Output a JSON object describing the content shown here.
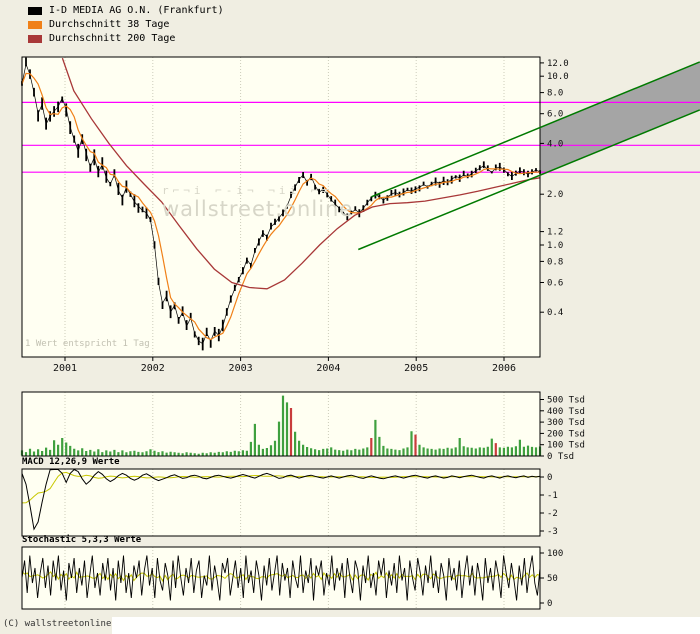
{
  "page": {
    "copyright": "(C) wallstreetonline",
    "note": "1 Wert entspricht 1 Tag",
    "watermark": {
      "glyphs": "r⌐¬i ⌐‐i¬ ¬ii ⌐=",
      "label": "wallstreet:online"
    }
  },
  "legend": [
    {
      "label": "I-D MEDIA AG O.N. (Frankfurt)",
      "color": "#000000"
    },
    {
      "label": "Durchschnitt 38 Tage",
      "color": "#f08018"
    },
    {
      "label": "Durchschnitt 200 Tage",
      "color": "#a83838"
    }
  ],
  "chart_data": [
    {
      "type": "candlestick",
      "name": "price",
      "title": "I-D MEDIA AG O.N. (Frankfurt)",
      "x_range": [
        2000.51,
        2006.41
      ],
      "x_years": [
        2001,
        2002,
        2003,
        2004,
        2005,
        2006
      ],
      "y_scale": "log",
      "y_range": [
        0.217,
        13.0
      ],
      "y_ticks": [
        12.0,
        10.0,
        8.0,
        6.0,
        4.0,
        2.0,
        1.2,
        1.0,
        0.8,
        0.6,
        0.4
      ],
      "price_color": "#000000",
      "close": [
        9.0,
        11.8,
        10.2,
        8.0,
        6.0,
        6.8,
        5.2,
        5.8,
        6.2,
        6.6,
        7.4,
        6.4,
        5.0,
        4.2,
        3.6,
        4.3,
        3.5,
        2.9,
        3.3,
        2.7,
        3.0,
        2.5,
        2.3,
        2.6,
        2.1,
        1.9,
        2.2,
        2.0,
        1.8,
        1.7,
        1.6,
        1.55,
        1.4,
        1.0,
        0.6,
        0.45,
        0.5,
        0.4,
        0.44,
        0.36,
        0.4,
        0.33,
        0.37,
        0.3,
        0.27,
        0.26,
        0.3,
        0.27,
        0.31,
        0.29,
        0.33,
        0.4,
        0.48,
        0.55,
        0.63,
        0.7,
        0.82,
        0.76,
        0.92,
        1.05,
        1.18,
        1.12,
        1.28,
        1.35,
        1.45,
        1.55,
        1.7,
        1.95,
        2.2,
        2.45,
        2.6,
        2.35,
        2.55,
        2.25,
        2.05,
        2.15,
        2.0,
        1.85,
        1.75,
        1.65,
        1.55,
        1.48,
        1.55,
        1.62,
        1.55,
        1.65,
        1.78,
        1.9,
        2.0,
        1.92,
        1.85,
        1.92,
        2.0,
        2.05,
        1.98,
        2.05,
        2.12,
        2.08,
        2.15,
        2.2,
        2.28,
        2.22,
        2.3,
        2.38,
        2.32,
        2.4,
        2.35,
        2.45,
        2.55,
        2.5,
        2.6,
        2.55,
        2.65,
        2.75,
        2.85,
        2.95,
        2.8,
        2.7,
        2.85,
        2.9,
        2.8,
        2.65,
        2.55,
        2.65,
        2.75,
        2.7,
        2.62,
        2.7,
        2.78,
        2.72
      ],
      "ma38": {
        "label": "Durchschnitt 38 Tage",
        "color": "#f08018",
        "window": 4
      },
      "ma200": {
        "label": "Durchschnitt 200 Tage",
        "color": "#a83838",
        "t": [
          2000.97,
          2001.1,
          2001.3,
          2001.5,
          2001.7,
          2001.9,
          2002.1,
          2002.3,
          2002.5,
          2002.7,
          2002.9,
          2003.1,
          2003.3,
          2003.5,
          2003.7,
          2003.9,
          2004.1,
          2004.3,
          2004.5,
          2004.7,
          2004.9,
          2005.1,
          2005.3,
          2005.5,
          2005.7,
          2005.9,
          2006.1,
          2006.3,
          2006.41
        ],
        "values": [
          12.8,
          8.2,
          5.6,
          4.0,
          2.95,
          2.3,
          1.8,
          1.3,
          0.95,
          0.72,
          0.6,
          0.56,
          0.55,
          0.62,
          0.78,
          1.0,
          1.25,
          1.5,
          1.68,
          1.76,
          1.78,
          1.82,
          1.9,
          1.98,
          2.08,
          2.2,
          2.32,
          2.45,
          2.5
        ]
      },
      "horizontal_lines": {
        "color": "#ff00ff",
        "values": [
          7.0,
          3.9,
          2.7
        ]
      },
      "trend_channel": {
        "line_color": "#007a00",
        "fill_color": "#a5a5a5",
        "lower": {
          "t": [
            2004.34,
            2008.23
          ],
          "p": [
            0.94,
            6.32
          ]
        },
        "upper": {
          "t": [
            2004.49,
            2008.23
          ],
          "p": [
            1.93,
            12.16
          ]
        }
      }
    },
    {
      "type": "bar",
      "name": "volume",
      "unit": "Tsd",
      "up_color": "#3fa03f",
      "down_color": "#c83c3c",
      "y_ticks": [
        "500 Tsd",
        "400 Tsd",
        "300 Tsd",
        "200 Tsd",
        "100 Tsd",
        "0 Tsd"
      ],
      "values": [
        45,
        30,
        60,
        35,
        55,
        40,
        70,
        50,
        135,
        95,
        155,
        115,
        85,
        60,
        45,
        65,
        40,
        50,
        35,
        55,
        30,
        45,
        35,
        50,
        30,
        45,
        28,
        38,
        42,
        32,
        28,
        38,
        55,
        42,
        30,
        38,
        26,
        34,
        28,
        24,
        20,
        28,
        24,
        20,
        16,
        24,
        20,
        28,
        24,
        32,
        28,
        38,
        32,
        42,
        38,
        46,
        42,
        120,
        280,
        95,
        58,
        66,
        90,
        130,
        300,
        530,
        470,
        -420,
        210,
        130,
        95,
        75,
        65,
        55,
        48,
        58,
        62,
        72,
        52,
        48,
        42,
        52,
        46,
        58,
        52,
        62,
        72,
        -155,
        315,
        165,
        85,
        62,
        58,
        52,
        48,
        62,
        72,
        215,
        -185,
        95,
        72,
        62,
        58,
        52,
        62,
        58,
        68,
        62,
        72,
        155,
        82,
        72,
        68,
        62,
        72,
        68,
        78,
        150,
        -110,
        72,
        68,
        78,
        72,
        82,
        140,
        78,
        88,
        76,
        72,
        80
      ]
    },
    {
      "type": "line",
      "name": "macd",
      "label": "MACD 12,26,9 Werte",
      "line_color": "#000000",
      "signal_color": "#c8c800",
      "y_ticks": [
        0,
        -1,
        -2,
        -3
      ],
      "values": [
        0.2,
        -0.4,
        -1.6,
        -2.9,
        -2.5,
        -1.4,
        -0.4,
        0.4,
        0.6,
        0.5,
        0.2,
        -0.3,
        0.2,
        0.5,
        0.3,
        -0.1,
        -0.4,
        -0.2,
        0.1,
        0.3,
        0.15,
        -0.1,
        -0.25,
        -0.12,
        0.08,
        0.2,
        0.1,
        -0.08,
        -0.18,
        -0.08,
        0.1,
        0.18,
        0.05,
        -0.1,
        -0.2,
        -0.12,
        -0.04,
        0.06,
        0.12,
        0.02,
        -0.08,
        -0.04,
        0.06,
        0.1,
        0.04,
        -0.06,
        -0.1,
        -0.02,
        0.06,
        0.1,
        0.04,
        -0.02,
        -0.06,
        0,
        0.08,
        0.14,
        0.08,
        0,
        -0.06,
        0.04,
        0.14,
        0.2,
        0.12,
        0.02,
        -0.08,
        -0.04,
        0.06,
        0.1,
        0.02,
        -0.06,
        0,
        0.06,
        0.1,
        0.04,
        -0.02,
        -0.06,
        0,
        0.06,
        0,
        -0.06,
        0,
        0.06,
        0.1,
        0.04,
        -0.04,
        -0.08,
        0,
        0.06,
        0,
        -0.06,
        -0.1,
        -0.04,
        0.02,
        0.06,
        0,
        -0.06,
        0,
        0.06,
        0.1,
        0.04,
        -0.02,
        -0.06,
        0.02,
        0.06,
        0,
        -0.06,
        -0.02,
        0.06,
        0.02,
        -0.04,
        0.02,
        0.06,
        0.1,
        0.04,
        -0.02,
        -0.06,
        0.02,
        0.06,
        0,
        -0.06,
        0.02,
        0.06,
        0,
        -0.04,
        0.02,
        0.06,
        -0.02,
        0.04,
        0,
        0.04
      ]
    },
    {
      "type": "line",
      "name": "stochastic",
      "label": "Stochastic 5,3,3 Werte",
      "line_color": "#000000",
      "signal_color": "#c8c800",
      "y_ticks": [
        100,
        50,
        0
      ],
      "values": [
        50,
        85,
        20,
        95,
        40,
        70,
        10,
        60,
        90,
        30,
        75,
        15,
        85,
        45,
        95,
        25,
        65,
        5,
        80,
        50,
        90,
        20,
        70,
        35,
        85,
        10,
        55,
        95,
        30,
        60,
        15,
        80,
        45,
        90,
        25,
        70,
        5,
        85,
        40,
        95,
        20,
        60,
        10,
        75,
        50,
        85,
        15,
        65,
        95,
        35,
        70,
        10,
        90,
        45,
        25,
        80,
        55,
        5,
        85,
        30,
        95,
        50,
        15,
        70,
        40,
        90,
        20,
        65,
        85,
        10,
        55,
        35,
        95,
        25,
        75,
        45,
        5,
        80,
        60,
        90,
        15,
        50,
        85,
        30,
        70,
        10,
        95,
        40,
        65,
        20,
        85,
        55,
        5,
        75,
        35,
        90,
        25,
        60,
        95,
        15,
        80,
        45,
        70,
        10,
        85,
        50,
        30,
        95,
        20,
        65,
        40,
        90,
        5,
        75,
        55,
        85,
        15,
        60,
        35,
        95,
        25,
        70,
        45,
        80,
        10,
        90,
        50,
        20,
        85,
        65,
        5,
        75,
        40,
        95,
        30,
        60,
        15,
        85,
        55,
        90,
        10,
        65,
        35,
        80,
        20,
        95,
        45,
        70,
        5,
        85,
        50,
        25,
        90,
        60,
        15,
        75,
        40,
        95,
        30,
        65,
        20,
        80,
        55,
        5,
        90,
        45,
        70,
        25,
        85,
        10,
        60,
        95,
        35,
        75,
        15,
        80,
        50,
        5,
        90,
        40,
        70,
        25,
        85,
        55,
        10,
        95,
        60,
        30,
        80,
        45,
        5,
        75,
        35,
        90,
        20,
        65,
        95,
        40,
        15,
        70
      ]
    }
  ]
}
